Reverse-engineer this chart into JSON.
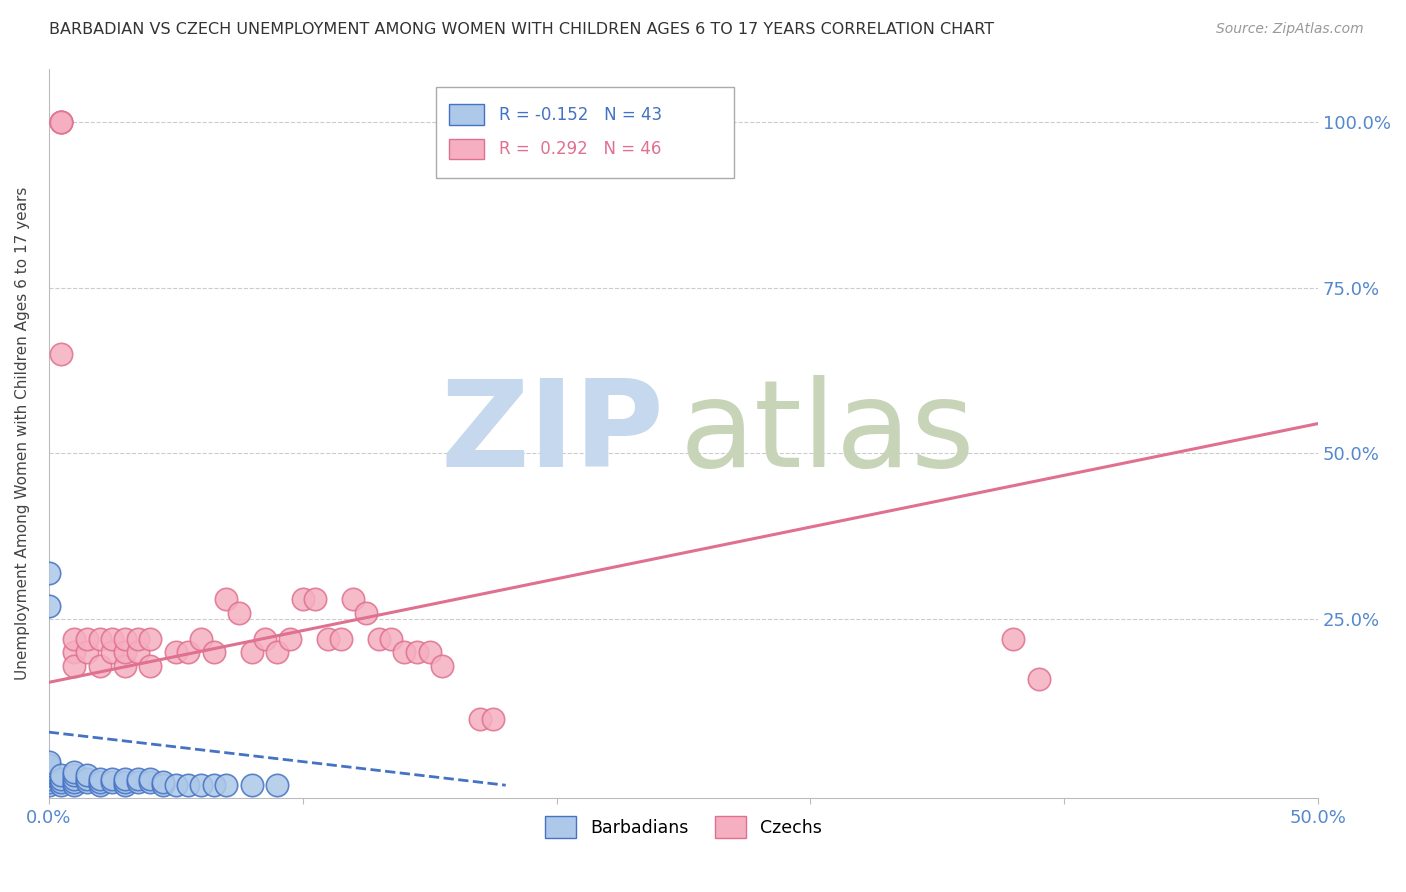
{
  "title": "BARBADIAN VS CZECH UNEMPLOYMENT AMONG WOMEN WITH CHILDREN AGES 6 TO 17 YEARS CORRELATION CHART",
  "source": "Source: ZipAtlas.com",
  "ylabel": "Unemployment Among Women with Children Ages 6 to 17 years",
  "ytick_labels": [
    "100.0%",
    "75.0%",
    "50.0%",
    "25.0%"
  ],
  "ytick_values": [
    1.0,
    0.75,
    0.5,
    0.25
  ],
  "xlim": [
    0.0,
    0.5
  ],
  "ylim": [
    -0.02,
    1.08
  ],
  "barbadian_R": -0.152,
  "barbadian_N": 43,
  "czech_R": 0.292,
  "czech_N": 46,
  "legend_labels": [
    "Barbadians",
    "Czechs"
  ],
  "barbadian_color": "#adc8e8",
  "czech_color": "#f5afc0",
  "barbadian_line_color": "#4472c4",
  "czech_line_color": "#e07090",
  "watermark_zip_color": "#c5d8ee",
  "watermark_atlas_color": "#c8d4b8",
  "background_color": "#ffffff",
  "grid_color": "#cccccc",
  "barbadian_x": [
    0.0,
    0.0,
    0.0,
    0.0,
    0.0,
    0.0,
    0.0,
    0.0,
    0.0,
    0.0,
    0.005,
    0.005,
    0.005,
    0.005,
    0.01,
    0.01,
    0.01,
    0.01,
    0.01,
    0.015,
    0.015,
    0.015,
    0.02,
    0.02,
    0.02,
    0.025,
    0.025,
    0.03,
    0.03,
    0.03,
    0.035,
    0.035,
    0.04,
    0.04,
    0.045,
    0.045,
    0.05,
    0.055,
    0.06,
    0.065,
    0.07,
    0.08,
    0.09
  ],
  "barbadian_y": [
    0.0,
    0.005,
    0.01,
    0.015,
    0.02,
    0.025,
    0.03,
    0.035,
    0.32,
    0.27,
    0.0,
    0.005,
    0.01,
    0.015,
    0.0,
    0.005,
    0.01,
    0.015,
    0.02,
    0.005,
    0.01,
    0.015,
    0.0,
    0.005,
    0.01,
    0.005,
    0.01,
    0.0,
    0.005,
    0.01,
    0.005,
    0.01,
    0.005,
    0.01,
    0.0,
    0.005,
    0.0,
    0.0,
    0.0,
    0.0,
    0.0,
    0.0,
    0.0
  ],
  "czech_x": [
    0.005,
    0.005,
    0.005,
    0.005,
    0.01,
    0.01,
    0.01,
    0.015,
    0.015,
    0.02,
    0.02,
    0.025,
    0.025,
    0.03,
    0.03,
    0.03,
    0.035,
    0.035,
    0.04,
    0.04,
    0.05,
    0.055,
    0.06,
    0.065,
    0.07,
    0.075,
    0.08,
    0.085,
    0.09,
    0.095,
    0.1,
    0.105,
    0.11,
    0.115,
    0.12,
    0.125,
    0.13,
    0.135,
    0.14,
    0.145,
    0.15,
    0.155,
    0.17,
    0.175,
    0.38,
    0.39
  ],
  "czech_y": [
    1.0,
    1.0,
    1.0,
    0.65,
    0.2,
    0.22,
    0.18,
    0.2,
    0.22,
    0.18,
    0.22,
    0.2,
    0.22,
    0.18,
    0.2,
    0.22,
    0.2,
    0.22,
    0.18,
    0.22,
    0.2,
    0.2,
    0.22,
    0.2,
    0.28,
    0.26,
    0.2,
    0.22,
    0.2,
    0.22,
    0.28,
    0.28,
    0.22,
    0.22,
    0.28,
    0.26,
    0.22,
    0.22,
    0.2,
    0.2,
    0.2,
    0.18,
    0.1,
    0.1,
    0.22,
    0.16
  ],
  "czech_line_x0": 0.0,
  "czech_line_y0": 0.155,
  "czech_line_x1": 0.5,
  "czech_line_y1": 0.545,
  "barbadian_line_x0": 0.0,
  "barbadian_line_y0": 0.08,
  "barbadian_line_x1": 0.18,
  "barbadian_line_y1": 0.0
}
